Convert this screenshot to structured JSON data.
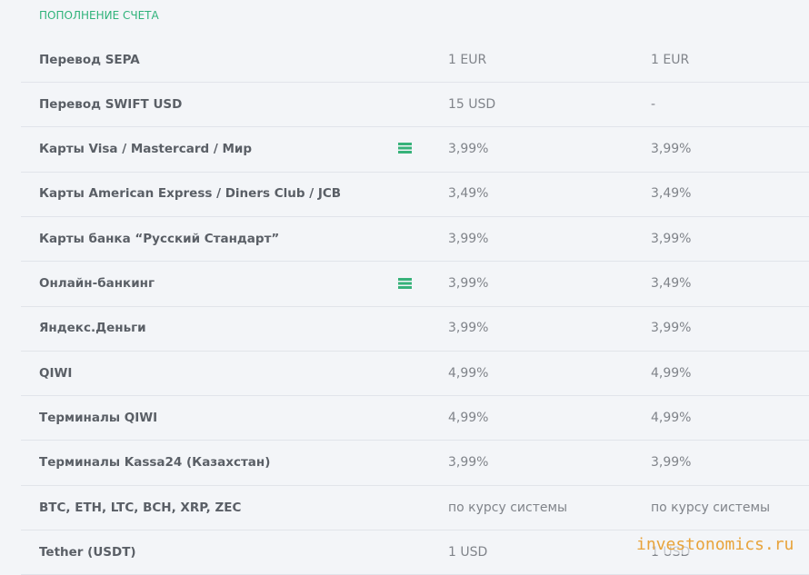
{
  "section_title": "ПОПОЛНЕНИЕ СЧЕТА",
  "table": {
    "rows": [
      [
        "Перевод SEPA",
        "1 EUR",
        "1 EUR"
      ],
      [
        "Перевод SWIFT USD",
        "15 USD",
        "-"
      ],
      [
        "Карты Visa / Mastercard / Мир",
        "3,99%",
        "3,99%"
      ],
      [
        "Карты American Express / Diners Club / JCB",
        "3,49%",
        "3,49%"
      ],
      [
        "Карты банка “Русский Стандарт”",
        "3,99%",
        "3,99%"
      ],
      [
        "Онлайн-банкинг",
        "3,99%",
        "3,49%"
      ],
      [
        "Яндекс.Деньги",
        "3,99%",
        "3,99%"
      ],
      [
        "QIWI",
        "4,99%",
        "4,99%"
      ],
      [
        "Терминалы QIWI",
        "4,99%",
        "4,99%"
      ],
      [
        "Терминалы Kassa24 (Казахстан)",
        "3,99%",
        "3,99%"
      ],
      [
        "BTC, ETH, LTC, BCH, XRP, ZEC",
        "по курсу системы",
        "по курсу системы"
      ],
      [
        "Tether (USDT)",
        "1 USD",
        "1 USD"
      ]
    ]
  },
  "watermark": "investonomics.ru"
}
